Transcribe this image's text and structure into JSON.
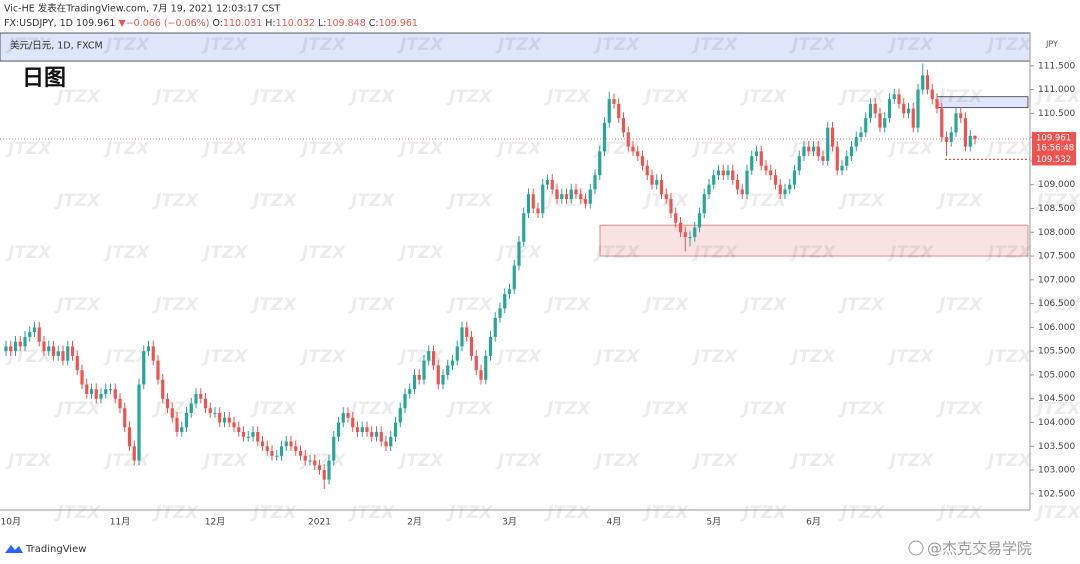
{
  "header": {
    "publish": "Vic-HE 发表在TradingView.com, 7月 19, 2021 12:03:17 CST",
    "symbol": "FX:USDJPY, 1D",
    "arrow": "▼",
    "change": "−0.066 (−0.06%)",
    "o": "O:",
    "h": "H:",
    "l": "L:",
    "c": "C:"
  },
  "footer": {
    "brand": "TradingView",
    "author": "@杰克交易学院"
  },
  "chart_data": {
    "type": "candlestick",
    "title": "日图",
    "subtitle": "美元/日元, 1D, FXCM",
    "currency": "JPY",
    "watermark": "JTZX",
    "up_color": "#26a69a",
    "down_color": "#ef5350",
    "grid": false,
    "ylim": [
      102.16,
      112.19
    ],
    "yticks": [
      {
        "value": 102.5,
        "label": "102.500"
      },
      {
        "value": 103,
        "label": "103.000"
      },
      {
        "value": 103.5,
        "label": "103.500"
      },
      {
        "value": 104,
        "label": "104.000"
      },
      {
        "value": 104.5,
        "label": "104.500"
      },
      {
        "value": 105,
        "label": "105.000"
      },
      {
        "value": 105.5,
        "label": "105.500"
      },
      {
        "value": 106,
        "label": "106.000"
      },
      {
        "value": 106.5,
        "label": "106.500"
      },
      {
        "value": 107,
        "label": "107.000"
      },
      {
        "value": 107.5,
        "label": "107.500"
      },
      {
        "value": 108,
        "label": "108.000"
      },
      {
        "value": 108.5,
        "label": "108.500"
      },
      {
        "value": 109,
        "label": "109.000"
      },
      {
        "value": 109.5,
        "label": "109.500"
      },
      {
        "value": 110,
        "label": "110.000"
      },
      {
        "value": 110.5,
        "label": "110.500"
      },
      {
        "value": 111,
        "label": "111.000"
      },
      {
        "value": 111.5,
        "label": "111.500"
      }
    ],
    "countdown": "16:56:48",
    "alert_price": 109.532,
    "zones": [
      {
        "from": 111.6,
        "to": 112.19,
        "color": "#dfe6fb"
      },
      {
        "from": 110.62,
        "to": 110.85,
        "color": "#dfe6fb"
      },
      {
        "from": 107.5,
        "to": 108.15,
        "color": "#fbe2e2"
      }
    ],
    "categories": [
      null,
      "10月",
      null,
      null,
      null,
      null,
      null,
      null,
      null,
      null,
      null,
      null,
      null,
      null,
      null,
      null,
      null,
      null,
      null,
      null,
      null,
      null,
      null,
      null,
      "11月",
      null,
      null,
      null,
      null,
      null,
      null,
      null,
      null,
      null,
      null,
      null,
      null,
      null,
      null,
      null,
      null,
      null,
      null,
      null,
      "12月",
      null,
      null,
      null,
      null,
      null,
      null,
      null,
      null,
      null,
      null,
      null,
      null,
      null,
      null,
      null,
      null,
      null,
      null,
      null,
      null,
      null,
      "2021",
      null,
      null,
      null,
      null,
      null,
      null,
      null,
      null,
      null,
      null,
      null,
      null,
      null,
      null,
      null,
      null,
      null,
      null,
      null,
      "2月",
      null,
      null,
      null,
      null,
      null,
      null,
      null,
      null,
      null,
      null,
      null,
      null,
      null,
      null,
      null,
      null,
      null,
      null,
      null,
      "3月",
      null,
      null,
      null,
      null,
      null,
      null,
      null,
      null,
      null,
      null,
      null,
      null,
      null,
      null,
      null,
      null,
      null,
      null,
      null,
      null,
      null,
      "4月",
      null,
      null,
      null,
      null,
      null,
      null,
      null,
      null,
      null,
      null,
      null,
      null,
      null,
      null,
      null,
      null,
      null,
      null,
      null,
      null,
      "5月",
      null,
      null,
      null,
      null,
      null,
      null,
      null,
      null,
      null,
      null,
      null,
      null,
      null,
      null,
      null,
      null,
      null,
      null,
      null,
      null,
      "6月",
      null,
      null,
      null,
      null,
      null,
      null,
      null,
      null,
      null,
      null,
      null,
      null,
      null,
      null,
      null,
      null,
      null,
      null,
      null,
      null,
      null,
      null,
      null,
      null,
      null,
      null,
      null,
      null,
      null,
      null,
      null,
      null,
      null,
      null
    ],
    "open": [
      105.5,
      105.6,
      105.5,
      105.7,
      105.6,
      105.8,
      105.9,
      106.0,
      105.7,
      105.5,
      105.6,
      105.4,
      105.5,
      105.3,
      105.6,
      105.4,
      105.1,
      104.8,
      104.6,
      104.7,
      104.5,
      104.6,
      104.7,
      104.7,
      104.5,
      104.3,
      103.9,
      103.5,
      103.2,
      104.8,
      105.5,
      105.6,
      105.3,
      104.9,
      104.5,
      104.3,
      104.1,
      103.8,
      103.9,
      104.2,
      104.4,
      104.6,
      104.5,
      104.3,
      104.2,
      104.2,
      104.0,
      104.1,
      104.0,
      103.9,
      103.8,
      103.7,
      103.7,
      103.8,
      103.6,
      103.5,
      103.4,
      103.3,
      103.3,
      103.5,
      103.6,
      103.5,
      103.4,
      103.3,
      103.2,
      103.2,
      103.1,
      103.0,
      102.8,
      103.2,
      103.7,
      104.0,
      104.2,
      104.1,
      103.9,
      103.8,
      103.9,
      103.8,
      103.7,
      103.8,
      103.6,
      103.5,
      103.7,
      104.0,
      104.3,
      104.6,
      104.7,
      105.0,
      104.9,
      105.3,
      105.5,
      105.2,
      104.8,
      105.0,
      105.2,
      105.3,
      105.6,
      106.0,
      105.8,
      105.4,
      105.1,
      104.9,
      105.4,
      105.8,
      106.2,
      106.4,
      106.7,
      106.8,
      107.3,
      107.8,
      108.4,
      108.8,
      108.5,
      108.4,
      109.0,
      109.1,
      108.9,
      108.7,
      108.8,
      108.7,
      108.9,
      108.8,
      108.7,
      108.6,
      108.9,
      109.2,
      109.7,
      110.3,
      110.8,
      110.7,
      110.4,
      110.1,
      109.8,
      109.7,
      109.6,
      109.4,
      109.2,
      109.0,
      109.1,
      108.8,
      108.7,
      108.4,
      108.2,
      108.0,
      107.9,
      107.9,
      108.1,
      108.4,
      108.8,
      109.0,
      109.2,
      109.3,
      109.2,
      109.3,
      109.1,
      108.9,
      108.8,
      109.3,
      109.6,
      109.7,
      109.4,
      109.3,
      109.2,
      109.0,
      108.8,
      108.9,
      109.0,
      109.3,
      109.6,
      109.8,
      109.7,
      109.8,
      109.6,
      109.5,
      110.2,
      109.8,
      109.3,
      109.4,
      109.6,
      109.8,
      110.0,
      110.1,
      110.4,
      110.7,
      110.5,
      110.2,
      110.4,
      110.8,
      110.9,
      110.7,
      110.5,
      110.6,
      110.2,
      111.0,
      111.3,
      111.0,
      110.8,
      110.6,
      110.0,
      109.9,
      110.1,
      110.5,
      110.4,
      109.8,
      110.031
    ],
    "high": [
      105.72,
      105.72,
      105.82,
      105.82,
      105.92,
      106.02,
      106.12,
      106.12,
      105.82,
      105.72,
      105.72,
      105.62,
      105.62,
      105.72,
      105.72,
      105.52,
      105.22,
      104.92,
      104.82,
      104.82,
      104.72,
      104.82,
      104.82,
      104.82,
      104.62,
      104.42,
      104.02,
      103.62,
      104.92,
      105.62,
      105.72,
      105.72,
      105.42,
      105.02,
      104.62,
      104.42,
      104.22,
      104.02,
      104.32,
      104.52,
      104.72,
      104.72,
      104.62,
      104.42,
      104.32,
      104.32,
      104.22,
      104.22,
      104.12,
      104.02,
      103.92,
      103.82,
      103.92,
      103.92,
      103.72,
      103.62,
      103.52,
      103.42,
      103.62,
      103.72,
      103.72,
      103.62,
      103.52,
      103.42,
      103.32,
      103.32,
      103.22,
      103.12,
      103.32,
      103.82,
      104.12,
      104.32,
      104.32,
      104.22,
      104.02,
      104.02,
      104.02,
      103.92,
      103.92,
      103.92,
      103.72,
      103.82,
      104.12,
      104.42,
      104.72,
      104.82,
      105.12,
      105.12,
      105.42,
      105.62,
      105.62,
      105.32,
      105.12,
      105.32,
      105.42,
      105.72,
      106.12,
      106.12,
      105.92,
      105.52,
      105.22,
      105.52,
      105.92,
      106.32,
      106.52,
      106.82,
      106.92,
      107.42,
      107.92,
      108.52,
      108.92,
      108.92,
      108.62,
      109.12,
      109.22,
      109.22,
      109.02,
      108.92,
      108.92,
      109.02,
      109.02,
      108.92,
      108.82,
      109.02,
      109.32,
      109.82,
      110.42,
      110.95,
      110.92,
      110.82,
      110.52,
      110.22,
      109.92,
      109.82,
      109.72,
      109.52,
      109.32,
      109.22,
      109.22,
      108.92,
      108.82,
      108.52,
      108.32,
      108.12,
      108.02,
      108.22,
      108.52,
      108.92,
      109.12,
      109.32,
      109.42,
      109.42,
      109.42,
      109.42,
      109.22,
      109.02,
      109.42,
      109.72,
      109.82,
      109.82,
      109.52,
      109.42,
      109.32,
      109.12,
      109.02,
      109.12,
      109.42,
      109.72,
      109.92,
      109.92,
      109.92,
      109.92,
      109.72,
      110.32,
      110.32,
      109.92,
      109.52,
      109.72,
      109.92,
      110.12,
      110.22,
      110.52,
      110.82,
      110.82,
      110.62,
      110.52,
      110.92,
      111.02,
      111.02,
      110.82,
      110.72,
      110.72,
      111.12,
      111.55,
      111.42,
      111.12,
      110.92,
      110.72,
      110.12,
      110.22,
      110.62,
      110.62,
      110.52,
      110.15,
      110.032
    ],
    "low": [
      105.4,
      105.4,
      105.4,
      105.5,
      105.5,
      105.7,
      105.8,
      105.6,
      105.4,
      105.4,
      105.3,
      105.3,
      105.2,
      105.2,
      105.3,
      105.0,
      104.7,
      104.5,
      104.5,
      104.4,
      104.4,
      104.5,
      104.6,
      104.4,
      104.2,
      103.8,
      103.4,
      103.1,
      103.1,
      104.7,
      105.4,
      105.2,
      104.8,
      104.4,
      104.2,
      104.0,
      103.7,
      103.7,
      103.8,
      104.1,
      104.3,
      104.4,
      104.2,
      104.1,
      104.1,
      103.9,
      103.9,
      103.9,
      103.8,
      103.7,
      103.6,
      103.6,
      103.6,
      103.5,
      103.4,
      103.3,
      103.2,
      103.2,
      103.2,
      103.4,
      103.4,
      103.3,
      103.2,
      103.1,
      103.1,
      103.0,
      102.9,
      102.6,
      102.7,
      103.1,
      103.6,
      103.9,
      104.0,
      103.8,
      103.7,
      103.7,
      103.7,
      103.6,
      103.6,
      103.5,
      103.4,
      103.4,
      103.6,
      103.9,
      104.2,
      104.5,
      104.6,
      104.8,
      104.8,
      105.2,
      105.1,
      104.7,
      104.7,
      104.9,
      105.1,
      105.2,
      105.5,
      105.7,
      105.3,
      105.0,
      104.8,
      104.8,
      105.3,
      105.7,
      106.1,
      106.3,
      106.6,
      106.7,
      107.2,
      107.7,
      108.3,
      108.4,
      108.3,
      108.3,
      108.9,
      108.8,
      108.6,
      108.6,
      108.6,
      108.6,
      108.7,
      108.6,
      108.5,
      108.5,
      108.8,
      109.1,
      109.6,
      110.2,
      110.6,
      110.3,
      110.0,
      109.7,
      109.6,
      109.5,
      109.3,
      109.1,
      108.9,
      108.9,
      108.7,
      108.6,
      108.3,
      108.1,
      107.9,
      107.6,
      107.7,
      107.8,
      108.0,
      108.3,
      108.7,
      108.9,
      109.1,
      109.1,
      109.1,
      109.0,
      108.8,
      108.7,
      108.7,
      109.2,
      109.5,
      109.3,
      109.2,
      109.1,
      108.9,
      108.7,
      108.7,
      108.8,
      108.9,
      109.2,
      109.5,
      109.6,
      109.6,
      109.5,
      109.4,
      109.4,
      109.7,
      109.2,
      109.2,
      109.3,
      109.5,
      109.7,
      109.9,
      110.0,
      110.3,
      110.4,
      110.1,
      110.1,
      110.3,
      110.7,
      110.6,
      110.4,
      110.4,
      110.1,
      110.1,
      110.9,
      110.9,
      110.7,
      110.5,
      109.9,
      109.6,
      109.8,
      110.0,
      110.3,
      109.7,
      109.7,
      109.848
    ],
    "close": [
      105.6,
      105.5,
      105.7,
      105.6,
      105.8,
      105.9,
      106.0,
      105.7,
      105.5,
      105.6,
      105.4,
      105.5,
      105.3,
      105.6,
      105.4,
      105.1,
      104.8,
      104.6,
      104.7,
      104.5,
      104.6,
      104.7,
      104.7,
      104.5,
      104.3,
      103.9,
      103.5,
      103.2,
      104.8,
      105.5,
      105.6,
      105.3,
      104.9,
      104.5,
      104.3,
      104.1,
      103.8,
      103.9,
      104.2,
      104.4,
      104.6,
      104.5,
      104.3,
      104.2,
      104.2,
      104.0,
      104.1,
      104.0,
      103.9,
      103.8,
      103.7,
      103.7,
      103.8,
      103.6,
      103.5,
      103.4,
      103.3,
      103.3,
      103.5,
      103.6,
      103.5,
      103.4,
      103.3,
      103.2,
      103.2,
      103.1,
      103.0,
      102.8,
      103.2,
      103.7,
      104.0,
      104.2,
      104.1,
      103.9,
      103.8,
      103.9,
      103.8,
      103.7,
      103.8,
      103.6,
      103.5,
      103.7,
      104.0,
      104.3,
      104.6,
      104.7,
      105.0,
      104.9,
      105.3,
      105.5,
      105.2,
      104.8,
      105.0,
      105.2,
      105.3,
      105.6,
      106.0,
      105.8,
      105.4,
      105.1,
      104.9,
      105.4,
      105.8,
      106.2,
      106.4,
      106.7,
      106.8,
      107.3,
      107.8,
      108.4,
      108.8,
      108.5,
      108.4,
      109.0,
      109.1,
      108.9,
      108.7,
      108.8,
      108.7,
      108.9,
      108.8,
      108.7,
      108.6,
      108.9,
      109.2,
      109.7,
      110.3,
      110.8,
      110.7,
      110.4,
      110.1,
      109.8,
      109.7,
      109.6,
      109.4,
      109.2,
      109.0,
      109.1,
      108.8,
      108.7,
      108.4,
      108.2,
      108.0,
      107.9,
      107.9,
      108.1,
      108.4,
      108.8,
      109.0,
      109.2,
      109.3,
      109.2,
      109.3,
      109.1,
      108.9,
      108.8,
      109.3,
      109.6,
      109.7,
      109.4,
      109.3,
      109.2,
      109.0,
      108.8,
      108.9,
      109.0,
      109.3,
      109.6,
      109.8,
      109.7,
      109.8,
      109.6,
      109.5,
      110.2,
      109.8,
      109.3,
      109.4,
      109.6,
      109.8,
      110.0,
      110.1,
      110.4,
      110.7,
      110.5,
      110.2,
      110.4,
      110.8,
      110.9,
      110.7,
      110.5,
      110.6,
      110.2,
      111.0,
      111.3,
      111.0,
      110.8,
      110.6,
      110.0,
      109.9,
      110.1,
      110.5,
      110.4,
      109.8,
      110.027,
      109.961
    ]
  }
}
